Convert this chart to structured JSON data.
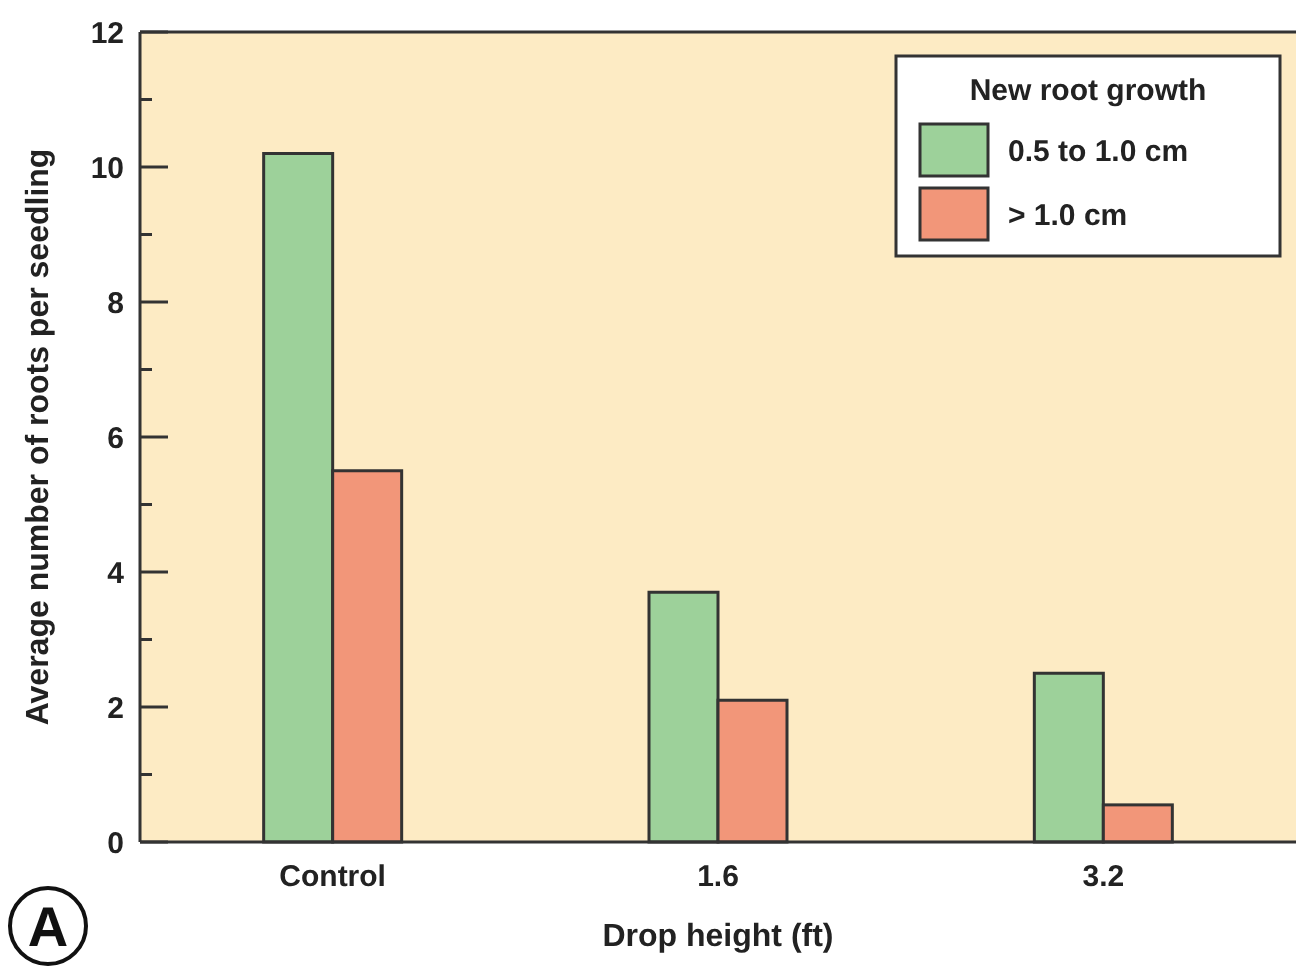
{
  "chart_data": {
    "type": "bar",
    "xlabel": "Drop height (ft)",
    "ylabel": "Average number of roots per seedling",
    "legend_title": "New root growth",
    "categories": [
      "Control",
      "1.6",
      "3.2"
    ],
    "series": [
      {
        "name": "0.5 to 1.0 cm",
        "color": "#9dd19a",
        "values": [
          10.2,
          3.7,
          2.5
        ]
      },
      {
        "name": "> 1.0 cm",
        "color": "#f29679",
        "values": [
          5.5,
          2.1,
          0.55
        ]
      }
    ],
    "ylim": [
      0,
      12
    ],
    "yticks": [
      0,
      {
        "value": 1,
        "label": null
      },
      2,
      {
        "value": 3,
        "label": null
      },
      4,
      {
        "value": 5,
        "label": null
      },
      6,
      {
        "value": 7,
        "label": null
      },
      8,
      {
        "value": 9,
        "label": null
      },
      10,
      {
        "value": 11,
        "label": null
      },
      12
    ],
    "grid": false,
    "legend": "top right",
    "annotations": [
      "A"
    ]
  }
}
